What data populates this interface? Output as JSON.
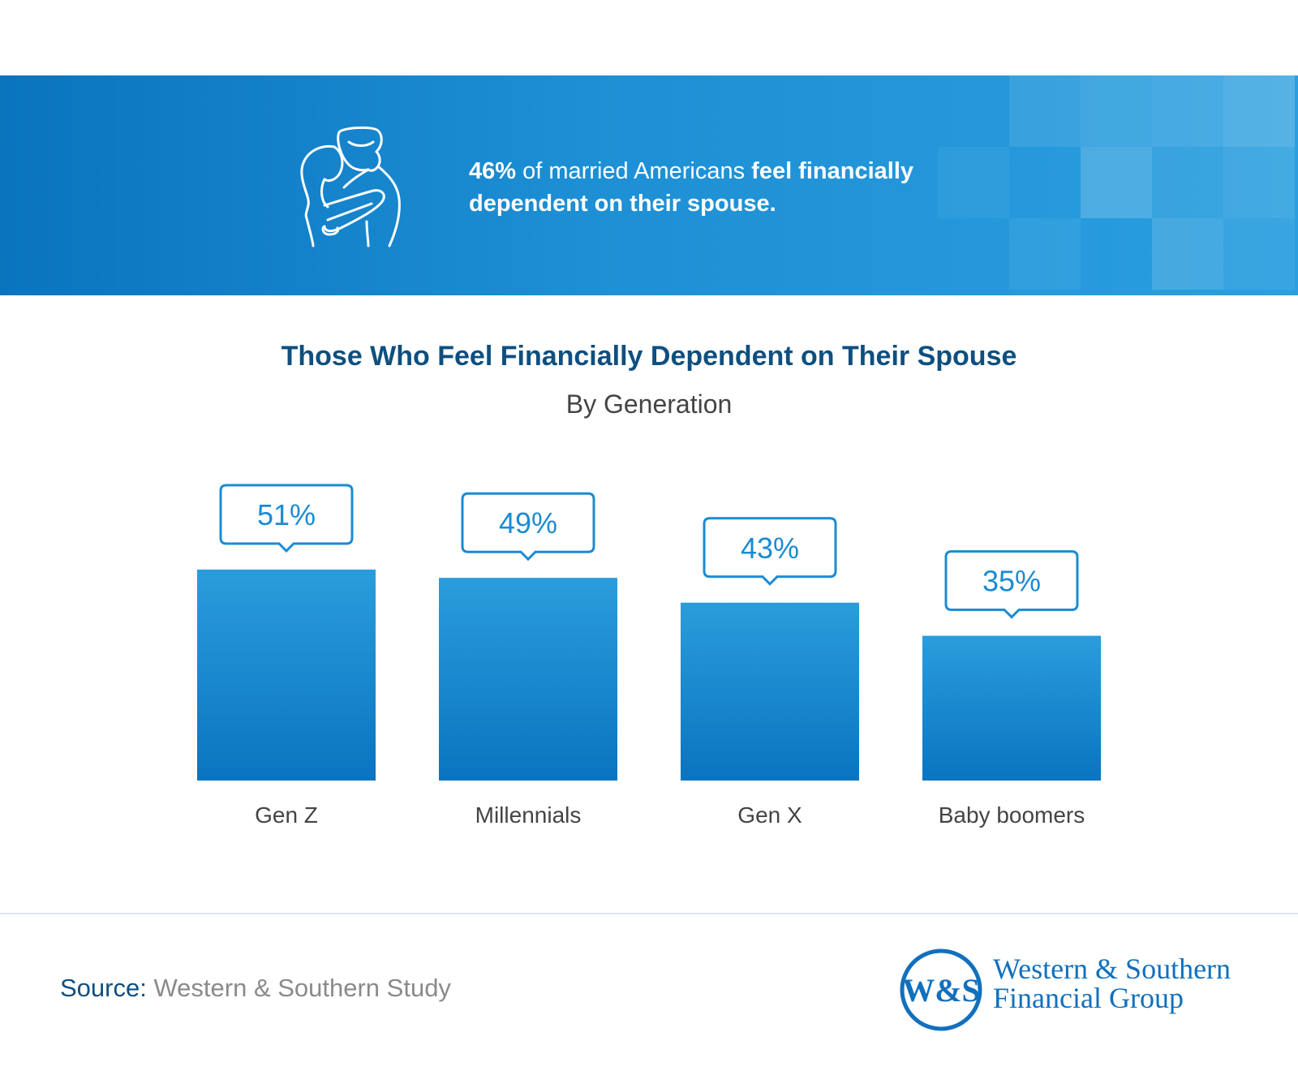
{
  "banner": {
    "stat": "46%",
    "text_plain": " of married Americans ",
    "text_bold_1": "feel financially",
    "text_bold_2": "dependent on their spouse.",
    "icon": "couple-hugging-icon"
  },
  "chart_data": {
    "type": "bar",
    "title": "Those Who Feel Financially Dependent on Their Spouse",
    "subtitle": "By Generation",
    "categories": [
      "Gen Z",
      "Millennials",
      "Gen X",
      "Baby boomers"
    ],
    "values": [
      51,
      49,
      43,
      35
    ],
    "data_labels": [
      "51%",
      "49%",
      "43%",
      "35%"
    ],
    "ylim": [
      0,
      51
    ],
    "grid": false,
    "bar_color": "#1b8bd2",
    "label_color": "#1b8bd2"
  },
  "footer": {
    "source_label": "Source:",
    "source_value": "Western & Southern Study",
    "logo_monogram": "W&S",
    "logo_line1": "Western & Southern",
    "logo_line2": "Financial Group"
  },
  "colors": {
    "brand_blue": "#1170bd",
    "title_navy": "#0e4f7f"
  }
}
